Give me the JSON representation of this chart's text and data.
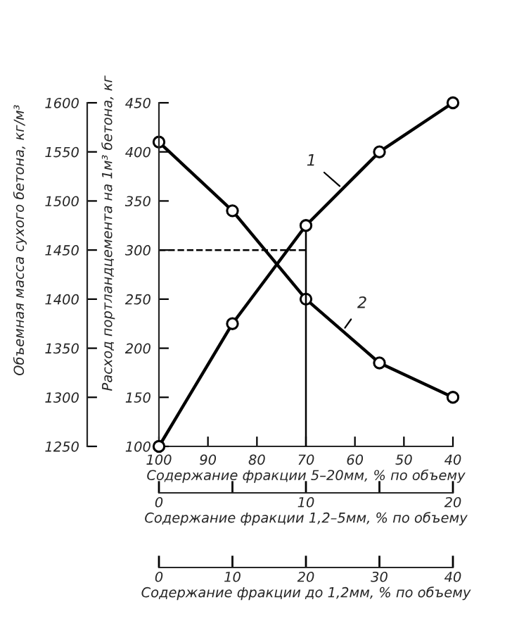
{
  "chart_data": {
    "type": "line",
    "xlabel": "Содержание фракции 5–20мм, % по объему",
    "ylabel": "Объемная масса сухого бетона, кг/м³",
    "y2label": "Расход портландцемента на 1м³ бетона, кг",
    "x2label": "Содержание фракции 1,2–5мм, % по объему",
    "x": [
      100,
      85,
      70,
      55,
      40
    ],
    "series": [
      {
        "name": "1",
        "color": "#000000",
        "axis": "y2",
        "values": [
          100,
          225,
          325,
          400,
          450
        ]
      },
      {
        "name": "2",
        "color": "#000000",
        "values": [
          1560,
          1490,
          1400,
          1335,
          1300
        ]
      }
    ],
    "xlim": [
      100,
      40
    ],
    "xticks": [
      100,
      90,
      80,
      70,
      60,
      50,
      40
    ],
    "x2lim": [
      0,
      20
    ],
    "x2ticks": [
      0,
      {
        "value": 5,
        "label": null
      },
      10,
      {
        "value": 15,
        "label": null
      },
      20
    ],
    "ylim": [
      1250,
      1600
    ],
    "yticks": [
      1250,
      1300,
      1350,
      1400,
      1450,
      1500,
      1550,
      1600
    ],
    "y2lim": [
      100,
      450
    ],
    "y2ticks": [
      100,
      150,
      200,
      250,
      300,
      350,
      400,
      450
    ],
    "ref_lines": [
      {
        "axis": "y2",
        "value": 300,
        "line_style": "dashed",
        "color": "#000000"
      },
      {
        "axis": "x",
        "value": 70,
        "line_style": "solid",
        "color": "#000000"
      }
    ],
    "annotations": [
      "Содержание фракции до 1,2мм, % по объему",
      "0",
      "10",
      "20",
      "30",
      "40"
    ],
    "marker": "circle",
    "line_style": "solid",
    "grid": false,
    "legend": false
  }
}
